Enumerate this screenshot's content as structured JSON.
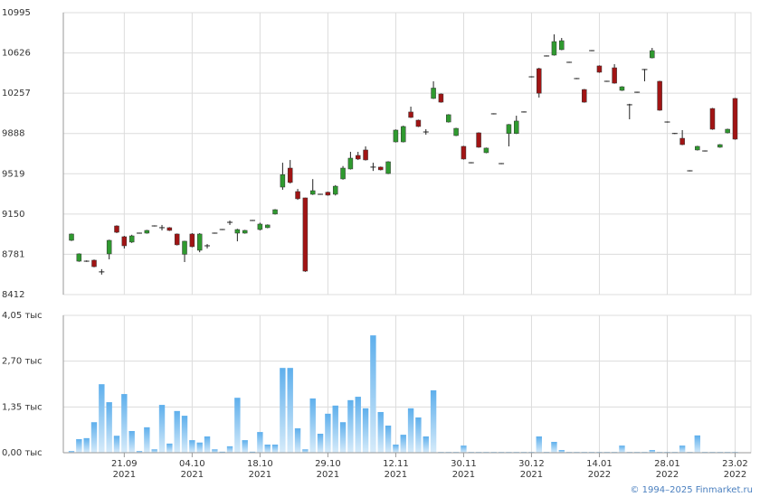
{
  "chart_data": [
    {
      "type": "candlestick",
      "up_color": "#2f9a2f",
      "down_color": "#a11414",
      "ylim": [
        8412,
        10995
      ],
      "yticks": [
        8412,
        8781,
        9150,
        9519,
        9888,
        10257,
        10626,
        10995
      ],
      "grid": true,
      "open": [
        8909,
        8718,
        8718,
        8727,
        8620,
        8785,
        9041,
        8942,
        8893,
        8975,
        8975,
        9041,
        9025,
        9025,
        8967,
        8781,
        8967,
        8818,
        8859,
        8975,
        9008,
        9074,
        8975,
        8975,
        9091,
        9008,
        9025,
        9150,
        9397,
        9571,
        9356,
        9298,
        9331,
        9331,
        9350,
        9331,
        9472,
        9563,
        9687,
        9737,
        9580,
        9580,
        9521,
        9811,
        9811,
        10085,
        10010,
        9902,
        10209,
        10250,
        9993,
        9869,
        9770,
        9620,
        9894,
        9712,
        10068,
        9612,
        9888,
        9888,
        10085,
        10407,
        10482,
        10598,
        10606,
        10656,
        10540,
        10391,
        10291,
        10647,
        10507,
        10366,
        10490,
        10283,
        10151,
        10266,
        10474,
        10581,
        10366,
        9993,
        9888,
        9844,
        9546,
        9737,
        9728,
        10117,
        9762,
        9894,
        10209
      ],
      "high": [
        8972,
        8790,
        8725,
        8733,
        8645,
        8915,
        9047,
        8950,
        8960,
        8980,
        9005,
        9046,
        9050,
        9030,
        8972,
        8905,
        8975,
        8975,
        8875,
        8980,
        9013,
        9090,
        9015,
        9005,
        9096,
        9070,
        9055,
        9195,
        9620,
        9645,
        9380,
        9300,
        9470,
        9336,
        9355,
        9415,
        9590,
        9720,
        9720,
        9770,
        9620,
        9585,
        9634,
        9925,
        9960,
        10134,
        10015,
        9927,
        10366,
        10255,
        10065,
        9940,
        9775,
        9625,
        9899,
        9759,
        10073,
        9617,
        9975,
        10051,
        10090,
        10412,
        10490,
        10603,
        10796,
        10763,
        10545,
        10396,
        10296,
        10652,
        10512,
        10371,
        10523,
        10321,
        10160,
        10271,
        10479,
        10672,
        10371,
        9998,
        9893,
        9919,
        9551,
        9775,
        9733,
        10122,
        9791,
        9932,
        10214
      ],
      "low": [
        8903,
        8712,
        8712,
        8662,
        8595,
        8735,
        8975,
        8834,
        8885,
        8970,
        8970,
        9036,
        9000,
        8995,
        8862,
        8710,
        8845,
        8800,
        8835,
        8970,
        9003,
        9050,
        8900,
        8970,
        9086,
        9000,
        9020,
        9145,
        9372,
        9430,
        9280,
        8620,
        9325,
        9326,
        9318,
        9320,
        9465,
        9558,
        9645,
        9640,
        9545,
        9550,
        9516,
        9806,
        9806,
        10030,
        9947,
        9877,
        10204,
        10170,
        9988,
        9864,
        9649,
        9615,
        9757,
        9707,
        10063,
        9607,
        9770,
        9883,
        10080,
        10402,
        10217,
        10593,
        10601,
        10651,
        10535,
        10386,
        10170,
        10642,
        10444,
        10361,
        10344,
        10278,
        10018,
        10261,
        10366,
        10576,
        10096,
        9988,
        9883,
        9781,
        9541,
        9732,
        9723,
        9922,
        9757,
        9889,
        9831
      ],
      "close": [
        8967,
        8785,
        8718,
        8668,
        8620,
        8909,
        8983,
        8859,
        8950,
        8975,
        9000,
        9041,
        9025,
        9000,
        8868,
        8901,
        8851,
        8967,
        8859,
        8975,
        9008,
        9074,
        9008,
        9000,
        9091,
        9058,
        9050,
        9190,
        9511,
        9439,
        9290,
        8627,
        9364,
        9331,
        9323,
        9405,
        9571,
        9662,
        9654,
        9646,
        9580,
        9555,
        9629,
        9919,
        9952,
        10035,
        9952,
        9902,
        10304,
        10175,
        10060,
        9935,
        9654,
        9620,
        9762,
        9754,
        10068,
        9612,
        9970,
        10002,
        10085,
        10407,
        10257,
        10598,
        10730,
        10738,
        10540,
        10391,
        10175,
        10647,
        10449,
        10366,
        10349,
        10316,
        10151,
        10266,
        10474,
        10647,
        10101,
        9993,
        9888,
        9786,
        9546,
        9770,
        9728,
        9927,
        9786,
        9927,
        9836
      ]
    },
    {
      "type": "bar",
      "color": "#7dbff0",
      "ylim": [
        0,
        4.05
      ],
      "yticks": [
        {
          "value": 0,
          "label": "0,00 тыс"
        },
        {
          "value": 1.35,
          "label": "1,35 тыс"
        },
        {
          "value": 2.7,
          "label": "2,70 тыс"
        },
        {
          "value": 4.05,
          "label": "4,05 тыс"
        }
      ],
      "grid": true,
      "categories": [
        null,
        null,
        null,
        null,
        null,
        null,
        null,
        [
          "21.09",
          "2021"
        ],
        null,
        null,
        null,
        null,
        null,
        null,
        null,
        null,
        [
          "04.10",
          "2021"
        ],
        null,
        null,
        null,
        null,
        null,
        null,
        null,
        null,
        [
          "18.10",
          "2021"
        ],
        null,
        null,
        null,
        null,
        null,
        null,
        null,
        null,
        [
          "29.10",
          "2021"
        ],
        null,
        null,
        null,
        null,
        null,
        null,
        null,
        null,
        [
          "12.11",
          "2021"
        ],
        null,
        null,
        null,
        null,
        null,
        null,
        null,
        null,
        [
          "30.11",
          "2021"
        ],
        null,
        null,
        null,
        null,
        null,
        null,
        null,
        null,
        [
          "30.12",
          "2021"
        ],
        null,
        null,
        null,
        null,
        null,
        null,
        null,
        null,
        [
          "14.01",
          "2022"
        ],
        null,
        null,
        null,
        null,
        null,
        null,
        null,
        null,
        [
          "28.01",
          "2022"
        ],
        null,
        null,
        null,
        null,
        null,
        null,
        null,
        null,
        [
          "23.02",
          "2022"
        ]
      ],
      "values": [
        0.05,
        0.4,
        0.43,
        0.9,
        2.02,
        1.49,
        0.5,
        1.73,
        0.64,
        0.05,
        0.75,
        0.1,
        1.41,
        0.27,
        1.23,
        1.09,
        0.37,
        0.3,
        0.48,
        0.1,
        0.03,
        0.19,
        1.62,
        0.37,
        0.03,
        0.61,
        0.24,
        0.24,
        2.5,
        2.5,
        0.72,
        0.1,
        1.6,
        0.56,
        1.15,
        1.39,
        0.9,
        1.55,
        1.65,
        1.31,
        3.46,
        1.2,
        0.8,
        0.24,
        0.53,
        1.31,
        1.04,
        0.48,
        1.84,
        0.02,
        0.02,
        0.02,
        0.21,
        0.02,
        0.02,
        0.02,
        0.02,
        0.02,
        0.02,
        0.02,
        0.02,
        0.02,
        0.48,
        0.02,
        0.32,
        0.08,
        0.02,
        0.02,
        0.02,
        0.02,
        0.02,
        0.02,
        0.02,
        0.21,
        0.02,
        0.02,
        0.02,
        0.08,
        0.02,
        0.02,
        0.02,
        0.21,
        0.02,
        0.51,
        0.02,
        0.02,
        0.02,
        0.02,
        0.02
      ]
    }
  ],
  "footer": "© 1994–2025 Finmarket.ru"
}
